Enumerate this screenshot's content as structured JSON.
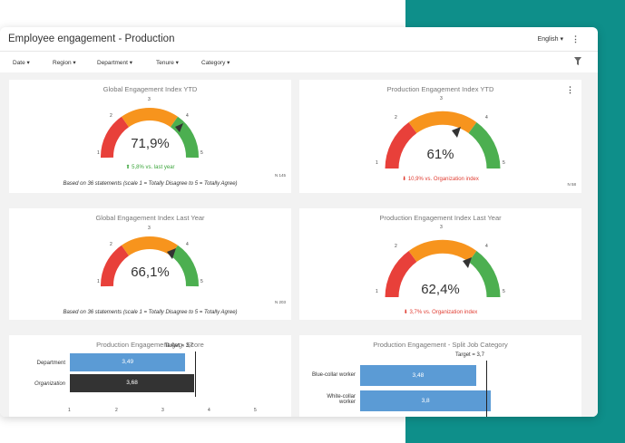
{
  "header": {
    "title": "Employee engagement - Production",
    "language": "English ▾",
    "menu_icon": "⋮"
  },
  "filters": [
    {
      "label": "Date ▾"
    },
    {
      "label": "Region ▾"
    },
    {
      "label": "Department ▾"
    },
    {
      "label": "Tenure ▾"
    },
    {
      "label": "Category ▾"
    }
  ],
  "filter_icon": "funnel-icon",
  "colors": {
    "teal": "#0e8f8a",
    "red": "#e8403a",
    "orange": "#f7941d",
    "green": "#4caf50",
    "blue": "#5b9bd5",
    "dark": "#333333"
  },
  "gauges": [
    {
      "title": "Global Engagement Index YTD",
      "value": "71,9%",
      "sub": "5,8% vs. last year",
      "arrow": "⬆",
      "trend": "up",
      "n": "N 145",
      "statement": "Based on 36 statements (scale 1 = Totally Disagree to 5 = Totally Agree)",
      "ticks": [
        "1",
        "2",
        "3",
        "4",
        "5"
      ]
    },
    {
      "title": "Production Engagement Index YTD",
      "value": "61%",
      "sub": "10,9% vs. Organization index",
      "arrow": "⬇",
      "trend": "down",
      "n": "N 58",
      "ticks": [
        "1",
        "2",
        "3",
        "4",
        "5"
      ],
      "menu_icon": "⋮"
    },
    {
      "title": "Global Engagement Index Last Year",
      "value": "66,1%",
      "n": "N 203",
      "statement": "Based on 36 statements (scale 1 = Totally Disagree to 5 = Totally Agree)",
      "ticks": [
        "1",
        "2",
        "3",
        "4",
        "5"
      ]
    },
    {
      "title": "Production Engagement Index Last Year",
      "value": "62,4%",
      "sub": "3,7% vs. Organization index",
      "arrow": "⬇",
      "trend": "down",
      "ticks": [
        "1",
        "2",
        "3",
        "4",
        "5"
      ]
    }
  ],
  "chart_data": [
    {
      "type": "bar",
      "orientation": "horizontal",
      "title": "Production Engagement Avg. Score",
      "categories": [
        "Department",
        "Organization"
      ],
      "values": [
        3.49,
        3.68
      ],
      "value_labels": [
        "3,49",
        "3,68"
      ],
      "xlim": [
        1,
        5
      ],
      "xticks": [
        "1",
        "2",
        "3",
        "4",
        "5"
      ],
      "target": 3.7,
      "target_label": "Target = 3,7"
    },
    {
      "type": "bar",
      "orientation": "horizontal",
      "title": "Production Engagement - Split Job Category",
      "categories": [
        "Blue-collar worker",
        "White-collar worker"
      ],
      "values": [
        3.48,
        3.8
      ],
      "value_labels": [
        "3,48",
        "3,8"
      ],
      "xlim": [
        1,
        5
      ],
      "target": 3.7,
      "target_label": "Target = 3,7"
    }
  ]
}
